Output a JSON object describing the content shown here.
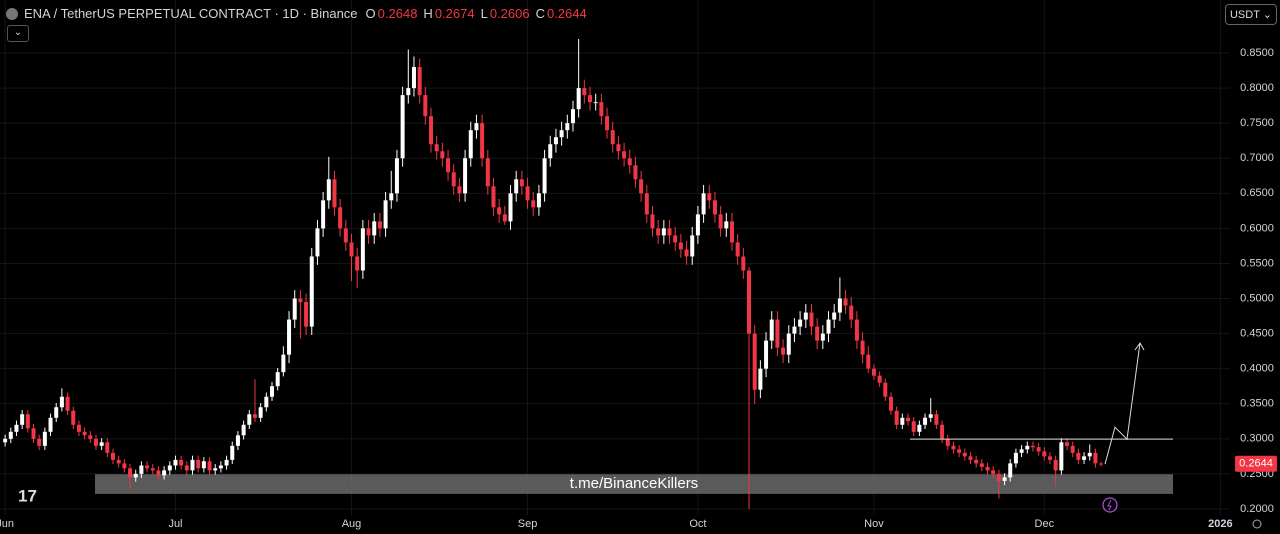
{
  "header": {
    "symbol": "ENA / TetherUS PERPETUAL CONTRACT · 1D · Binance",
    "ohlc_labels": [
      "O",
      "H",
      "L",
      "C"
    ],
    "currency": "USDT"
  },
  "chart_data": {
    "type": "candlestick",
    "up_color": "#ffffff",
    "down_color": "#f23645",
    "ylim": [
      0.1914,
      0.9256
    ],
    "xlim": [
      -0.9,
      215.7
    ],
    "yticks": [
      {
        "value": 0.2,
        "label": "0.2000"
      },
      {
        "value": 0.25,
        "label": "0.2500"
      },
      {
        "value": 0.3,
        "label": "0.3000"
      },
      {
        "value": 0.35,
        "label": "0.3500"
      },
      {
        "value": 0.4,
        "label": "0.4000"
      },
      {
        "value": 0.45,
        "label": "0.4500"
      },
      {
        "value": 0.5,
        "label": "0.5000"
      },
      {
        "value": 0.55,
        "label": "0.5500"
      },
      {
        "value": 0.6,
        "label": "0.6000"
      },
      {
        "value": 0.65,
        "label": "0.6500"
      },
      {
        "value": 0.7,
        "label": "0.7000"
      },
      {
        "value": 0.75,
        "label": "0.7500"
      },
      {
        "value": 0.8,
        "label": "0.8000"
      },
      {
        "value": 0.85,
        "label": "0.8500"
      }
    ],
    "xticks": [
      {
        "value": 0,
        "label": "Jun"
      },
      {
        "value": 30,
        "label": "Jul"
      },
      {
        "value": 61,
        "label": "Aug"
      },
      {
        "value": 92,
        "label": "Sep"
      },
      {
        "value": 122,
        "label": "Oct"
      },
      {
        "value": 153,
        "label": "Nov"
      },
      {
        "value": 183,
        "label": "Dec"
      },
      {
        "value": 214,
        "label": "2026"
      }
    ],
    "zone": {
      "from": 0.2215,
      "to": 0.2495,
      "label": "t.me/BinanceKillers"
    },
    "level": 0.2995,
    "candles": [
      [
        0.295,
        0.306,
        0.289,
        0.3
      ],
      [
        0.3,
        0.316,
        0.294,
        0.31
      ],
      [
        0.31,
        0.326,
        0.304,
        0.32
      ],
      [
        0.32,
        0.341,
        0.314,
        0.335
      ],
      [
        0.335,
        0.341,
        0.309,
        0.315
      ],
      [
        0.315,
        0.321,
        0.294,
        0.3
      ],
      [
        0.3,
        0.306,
        0.284,
        0.29
      ],
      [
        0.29,
        0.316,
        0.284,
        0.31
      ],
      [
        0.31,
        0.336,
        0.304,
        0.33
      ],
      [
        0.33,
        0.351,
        0.324,
        0.345
      ],
      [
        0.345,
        0.372,
        0.339,
        0.36
      ],
      [
        0.36,
        0.366,
        0.334,
        0.34
      ],
      [
        0.34,
        0.346,
        0.314,
        0.32
      ],
      [
        0.32,
        0.326,
        0.304,
        0.31
      ],
      [
        0.31,
        0.316,
        0.299,
        0.305
      ],
      [
        0.305,
        0.311,
        0.294,
        0.3
      ],
      [
        0.3,
        0.306,
        0.284,
        0.29
      ],
      [
        0.29,
        0.301,
        0.284,
        0.295
      ],
      [
        0.295,
        0.301,
        0.274,
        0.28
      ],
      [
        0.28,
        0.286,
        0.264,
        0.27
      ],
      [
        0.27,
        0.276,
        0.259,
        0.265
      ],
      [
        0.265,
        0.271,
        0.252,
        0.258
      ],
      [
        0.258,
        0.264,
        0.228,
        0.245
      ],
      [
        0.245,
        0.256,
        0.239,
        0.25
      ],
      [
        0.25,
        0.268,
        0.244,
        0.262
      ],
      [
        0.262,
        0.268,
        0.252,
        0.258
      ],
      [
        0.258,
        0.264,
        0.249,
        0.255
      ],
      [
        0.255,
        0.261,
        0.242,
        0.248
      ],
      [
        0.248,
        0.261,
        0.242,
        0.255
      ],
      [
        0.255,
        0.268,
        0.249,
        0.262
      ],
      [
        0.262,
        0.276,
        0.256,
        0.27
      ],
      [
        0.27,
        0.276,
        0.256,
        0.262
      ],
      [
        0.262,
        0.268,
        0.249,
        0.255
      ],
      [
        0.255,
        0.276,
        0.249,
        0.27
      ],
      [
        0.27,
        0.276,
        0.252,
        0.258
      ],
      [
        0.258,
        0.274,
        0.252,
        0.268
      ],
      [
        0.268,
        0.274,
        0.249,
        0.255
      ],
      [
        0.255,
        0.264,
        0.249,
        0.258
      ],
      [
        0.258,
        0.268,
        0.252,
        0.262
      ],
      [
        0.262,
        0.276,
        0.256,
        0.27
      ],
      [
        0.27,
        0.296,
        0.264,
        0.29
      ],
      [
        0.29,
        0.311,
        0.284,
        0.305
      ],
      [
        0.305,
        0.326,
        0.299,
        0.32
      ],
      [
        0.32,
        0.341,
        0.314,
        0.335
      ],
      [
        0.335,
        0.385,
        0.324,
        0.33
      ],
      [
        0.33,
        0.351,
        0.324,
        0.345
      ],
      [
        0.345,
        0.366,
        0.339,
        0.36
      ],
      [
        0.36,
        0.381,
        0.354,
        0.375
      ],
      [
        0.375,
        0.401,
        0.369,
        0.395
      ],
      [
        0.395,
        0.432,
        0.389,
        0.42
      ],
      [
        0.42,
        0.482,
        0.408,
        0.47
      ],
      [
        0.47,
        0.512,
        0.458,
        0.5
      ],
      [
        0.5,
        0.512,
        0.443,
        0.495
      ],
      [
        0.495,
        0.507,
        0.448,
        0.46
      ],
      [
        0.46,
        0.572,
        0.448,
        0.56
      ],
      [
        0.56,
        0.612,
        0.548,
        0.6
      ],
      [
        0.6,
        0.652,
        0.588,
        0.64
      ],
      [
        0.64,
        0.702,
        0.628,
        0.67
      ],
      [
        0.67,
        0.682,
        0.618,
        0.63
      ],
      [
        0.63,
        0.642,
        0.588,
        0.6
      ],
      [
        0.6,
        0.612,
        0.568,
        0.58
      ],
      [
        0.58,
        0.592,
        0.525,
        0.56
      ],
      [
        0.56,
        0.572,
        0.515,
        0.54
      ],
      [
        0.54,
        0.612,
        0.528,
        0.6
      ],
      [
        0.6,
        0.612,
        0.578,
        0.59
      ],
      [
        0.59,
        0.622,
        0.578,
        0.61
      ],
      [
        0.61,
        0.622,
        0.588,
        0.6
      ],
      [
        0.6,
        0.652,
        0.588,
        0.64
      ],
      [
        0.64,
        0.682,
        0.628,
        0.65
      ],
      [
        0.65,
        0.712,
        0.638,
        0.7
      ],
      [
        0.7,
        0.802,
        0.688,
        0.79
      ],
      [
        0.79,
        0.855,
        0.778,
        0.8
      ],
      [
        0.8,
        0.845,
        0.788,
        0.83
      ],
      [
        0.83,
        0.842,
        0.778,
        0.79
      ],
      [
        0.79,
        0.802,
        0.748,
        0.76
      ],
      [
        0.76,
        0.772,
        0.708,
        0.72
      ],
      [
        0.72,
        0.732,
        0.698,
        0.71
      ],
      [
        0.71,
        0.722,
        0.688,
        0.7
      ],
      [
        0.7,
        0.712,
        0.668,
        0.68
      ],
      [
        0.68,
        0.692,
        0.648,
        0.66
      ],
      [
        0.66,
        0.672,
        0.638,
        0.65
      ],
      [
        0.65,
        0.712,
        0.638,
        0.7
      ],
      [
        0.7,
        0.752,
        0.688,
        0.74
      ],
      [
        0.74,
        0.762,
        0.728,
        0.75
      ],
      [
        0.75,
        0.762,
        0.688,
        0.7
      ],
      [
        0.7,
        0.712,
        0.648,
        0.66
      ],
      [
        0.66,
        0.672,
        0.618,
        0.63
      ],
      [
        0.63,
        0.642,
        0.608,
        0.62
      ],
      [
        0.62,
        0.632,
        0.605,
        0.61
      ],
      [
        0.61,
        0.662,
        0.598,
        0.65
      ],
      [
        0.65,
        0.682,
        0.638,
        0.67
      ],
      [
        0.67,
        0.682,
        0.648,
        0.66
      ],
      [
        0.66,
        0.672,
        0.628,
        0.64
      ],
      [
        0.64,
        0.652,
        0.618,
        0.63
      ],
      [
        0.63,
        0.662,
        0.618,
        0.65
      ],
      [
        0.65,
        0.712,
        0.638,
        0.7
      ],
      [
        0.7,
        0.732,
        0.688,
        0.72
      ],
      [
        0.72,
        0.742,
        0.708,
        0.73
      ],
      [
        0.73,
        0.752,
        0.718,
        0.74
      ],
      [
        0.74,
        0.762,
        0.728,
        0.75
      ],
      [
        0.75,
        0.782,
        0.738,
        0.77
      ],
      [
        0.77,
        0.87,
        0.758,
        0.8
      ],
      [
        0.8,
        0.812,
        0.778,
        0.79
      ],
      [
        0.79,
        0.802,
        0.768,
        0.78
      ],
      [
        0.78,
        0.792,
        0.768,
        0.78
      ],
      [
        0.78,
        0.792,
        0.748,
        0.76
      ],
      [
        0.76,
        0.772,
        0.728,
        0.74
      ],
      [
        0.74,
        0.752,
        0.708,
        0.72
      ],
      [
        0.72,
        0.732,
        0.698,
        0.71
      ],
      [
        0.71,
        0.722,
        0.688,
        0.7
      ],
      [
        0.7,
        0.712,
        0.678,
        0.69
      ],
      [
        0.69,
        0.702,
        0.658,
        0.67
      ],
      [
        0.67,
        0.682,
        0.638,
        0.65
      ],
      [
        0.65,
        0.662,
        0.608,
        0.62
      ],
      [
        0.62,
        0.632,
        0.588,
        0.6
      ],
      [
        0.6,
        0.612,
        0.578,
        0.59
      ],
      [
        0.59,
        0.612,
        0.578,
        0.6
      ],
      [
        0.6,
        0.612,
        0.578,
        0.59
      ],
      [
        0.59,
        0.602,
        0.568,
        0.58
      ],
      [
        0.58,
        0.592,
        0.558,
        0.57
      ],
      [
        0.57,
        0.582,
        0.548,
        0.56
      ],
      [
        0.56,
        0.602,
        0.548,
        0.59
      ],
      [
        0.59,
        0.632,
        0.578,
        0.62
      ],
      [
        0.62,
        0.662,
        0.608,
        0.65
      ],
      [
        0.65,
        0.662,
        0.628,
        0.64
      ],
      [
        0.64,
        0.652,
        0.608,
        0.62
      ],
      [
        0.62,
        0.632,
        0.588,
        0.6
      ],
      [
        0.6,
        0.622,
        0.588,
        0.61
      ],
      [
        0.61,
        0.622,
        0.568,
        0.58
      ],
      [
        0.58,
        0.592,
        0.548,
        0.56
      ],
      [
        0.56,
        0.572,
        0.528,
        0.54
      ],
      [
        0.54,
        0.545,
        0.2,
        0.45
      ],
      [
        0.45,
        0.462,
        0.35,
        0.37
      ],
      [
        0.37,
        0.412,
        0.358,
        0.4
      ],
      [
        0.4,
        0.452,
        0.388,
        0.44
      ],
      [
        0.44,
        0.482,
        0.428,
        0.47
      ],
      [
        0.47,
        0.482,
        0.418,
        0.43
      ],
      [
        0.43,
        0.442,
        0.408,
        0.42
      ],
      [
        0.42,
        0.462,
        0.408,
        0.45
      ],
      [
        0.45,
        0.472,
        0.438,
        0.46
      ],
      [
        0.46,
        0.482,
        0.448,
        0.47
      ],
      [
        0.47,
        0.492,
        0.458,
        0.48
      ],
      [
        0.48,
        0.492,
        0.448,
        0.46
      ],
      [
        0.46,
        0.472,
        0.428,
        0.44
      ],
      [
        0.44,
        0.462,
        0.428,
        0.45
      ],
      [
        0.45,
        0.482,
        0.438,
        0.47
      ],
      [
        0.47,
        0.492,
        0.458,
        0.48
      ],
      [
        0.48,
        0.53,
        0.468,
        0.5
      ],
      [
        0.5,
        0.512,
        0.478,
        0.49
      ],
      [
        0.49,
        0.502,
        0.458,
        0.47
      ],
      [
        0.47,
        0.482,
        0.428,
        0.44
      ],
      [
        0.44,
        0.452,
        0.408,
        0.42
      ],
      [
        0.42,
        0.432,
        0.394,
        0.4
      ],
      [
        0.4,
        0.406,
        0.384,
        0.39
      ],
      [
        0.39,
        0.396,
        0.374,
        0.38
      ],
      [
        0.38,
        0.386,
        0.354,
        0.36
      ],
      [
        0.36,
        0.366,
        0.334,
        0.34
      ],
      [
        0.34,
        0.346,
        0.314,
        0.32
      ],
      [
        0.32,
        0.336,
        0.314,
        0.33
      ],
      [
        0.33,
        0.336,
        0.319,
        0.325
      ],
      [
        0.325,
        0.331,
        0.304,
        0.31
      ],
      [
        0.31,
        0.326,
        0.304,
        0.32
      ],
      [
        0.32,
        0.336,
        0.314,
        0.33
      ],
      [
        0.33,
        0.358,
        0.324,
        0.335
      ],
      [
        0.335,
        0.341,
        0.314,
        0.32
      ],
      [
        0.32,
        0.326,
        0.294,
        0.3
      ],
      [
        0.3,
        0.306,
        0.284,
        0.29
      ],
      [
        0.29,
        0.296,
        0.279,
        0.285
      ],
      [
        0.285,
        0.291,
        0.274,
        0.28
      ],
      [
        0.28,
        0.286,
        0.269,
        0.275
      ],
      [
        0.275,
        0.281,
        0.264,
        0.27
      ],
      [
        0.27,
        0.276,
        0.259,
        0.265
      ],
      [
        0.265,
        0.271,
        0.254,
        0.26
      ],
      [
        0.26,
        0.266,
        0.249,
        0.255
      ],
      [
        0.255,
        0.261,
        0.244,
        0.25
      ],
      [
        0.25,
        0.256,
        0.215,
        0.24
      ],
      [
        0.24,
        0.251,
        0.234,
        0.245
      ],
      [
        0.245,
        0.271,
        0.239,
        0.265
      ],
      [
        0.265,
        0.286,
        0.259,
        0.28
      ],
      [
        0.28,
        0.291,
        0.274,
        0.285
      ],
      [
        0.285,
        0.296,
        0.279,
        0.29
      ],
      [
        0.29,
        0.296,
        0.282,
        0.288
      ],
      [
        0.288,
        0.294,
        0.276,
        0.282
      ],
      [
        0.282,
        0.288,
        0.269,
        0.275
      ],
      [
        0.275,
        0.281,
        0.264,
        0.27
      ],
      [
        0.27,
        0.276,
        0.232,
        0.255
      ],
      [
        0.255,
        0.301,
        0.249,
        0.295
      ],
      [
        0.295,
        0.301,
        0.284,
        0.29
      ],
      [
        0.29,
        0.296,
        0.274,
        0.28
      ],
      [
        0.28,
        0.286,
        0.264,
        0.27
      ],
      [
        0.27,
        0.281,
        0.264,
        0.275
      ],
      [
        0.275,
        0.292,
        0.269,
        0.28
      ],
      [
        0.28,
        0.286,
        0.259,
        0.265
      ],
      [
        0.2648,
        0.2674,
        0.2606,
        0.2644
      ]
    ]
  }
}
